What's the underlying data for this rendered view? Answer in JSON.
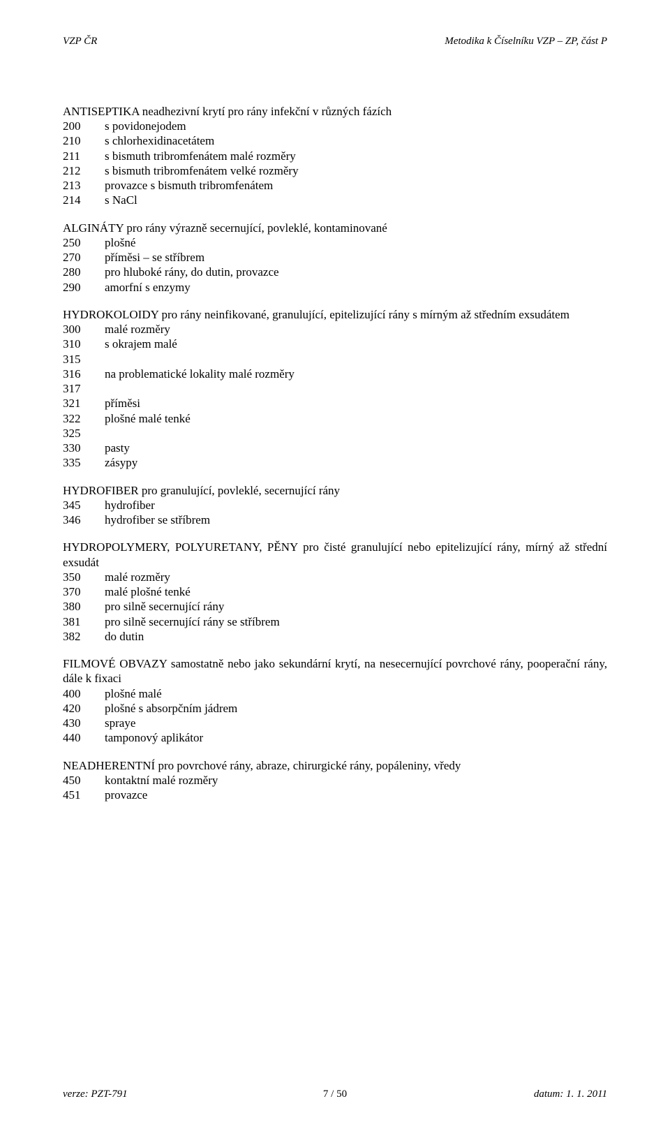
{
  "header": {
    "left": "VZP ČR",
    "right": "Metodika k Číselníku VZP – ZP, část P"
  },
  "s1": {
    "title": "ANTISEPTIKA neadhezivní krytí pro rány infekční v různých fázích",
    "items": [
      {
        "code": "200",
        "text": "s povidonejodem"
      },
      {
        "code": "210",
        "text": "s chlorhexidinacetátem"
      },
      {
        "code": "211",
        "text": "s bismuth tribromfenátem malé rozměry"
      },
      {
        "code": "212",
        "text": "s bismuth tribromfenátem velké rozměry"
      },
      {
        "code": "213",
        "text": "provazce s bismuth tribromfenátem"
      },
      {
        "code": "214",
        "text": "s NaCl"
      }
    ]
  },
  "s2": {
    "title": "ALGINÁTY pro rány výrazně secernující, povleklé, kontaminované",
    "items": [
      {
        "code": "250",
        "text": "plošné"
      },
      {
        "code": "270",
        "text": "příměsi – se stříbrem"
      },
      {
        "code": "280",
        "text": "pro hluboké rány, do dutin, provazce"
      },
      {
        "code": "290",
        "text": "amorfní s enzymy"
      }
    ]
  },
  "s3": {
    "title": "HYDROKOLOIDY pro rány neinfikované, granulující, epitelizující rány s mírným až středním exsudátem",
    "items": [
      {
        "code": "300",
        "text": "malé rozměry"
      },
      {
        "code": "310",
        "text": "s okrajem malé"
      },
      {
        "code": "315",
        "text": ""
      },
      {
        "code": "316",
        "text": "na problematické lokality malé rozměry"
      },
      {
        "code": "317",
        "text": ""
      },
      {
        "code": "321",
        "text": "příměsi"
      },
      {
        "code": "322",
        "text": "plošné malé tenké"
      },
      {
        "code": "325",
        "text": ""
      },
      {
        "code": "330",
        "text": "pasty"
      },
      {
        "code": "335",
        "text": "zásypy"
      }
    ]
  },
  "s4": {
    "title": "HYDROFIBER pro granulující, povleklé, secernující rány",
    "items": [
      {
        "code": "345",
        "text": "hydrofiber"
      },
      {
        "code": "346",
        "text": "hydrofiber se stříbrem"
      }
    ]
  },
  "s5": {
    "title": "HYDROPOLYMERY, POLYURETANY, PĚNY pro čisté granulující nebo epitelizující rány, mírný až střední exsudát",
    "items": [
      {
        "code": "350",
        "text": "malé rozměry"
      },
      {
        "code": "370",
        "text": "malé plošné tenké"
      },
      {
        "code": "380",
        "text": "pro silně secernující rány"
      },
      {
        "code": "381",
        "text": "pro silně secernující rány se stříbrem"
      },
      {
        "code": "382",
        "text": "do dutin"
      }
    ]
  },
  "s6": {
    "title": "FILMOVÉ OBVAZY samostatně nebo jako sekundární krytí, na nesecernující povrchové rány, pooperační rány, dále k fixaci",
    "items": [
      {
        "code": "400",
        "text": "plošné malé"
      },
      {
        "code": "420",
        "text": "plošné s absorpčním jádrem"
      },
      {
        "code": "430",
        "text": "spraye"
      },
      {
        "code": "440",
        "text": "tamponový aplikátor"
      }
    ]
  },
  "s7": {
    "title": "NEADHERENTNÍ pro povrchové rány, abraze, chirurgické rány, popáleniny, vředy",
    "items": [
      {
        "code": "450",
        "text": "kontaktní malé rozměry"
      },
      {
        "code": "451",
        "text": "provazce"
      }
    ]
  },
  "footer": {
    "left": "verze: PZT-791",
    "center": "7 / 50",
    "right": "datum: 1. 1. 2011"
  }
}
